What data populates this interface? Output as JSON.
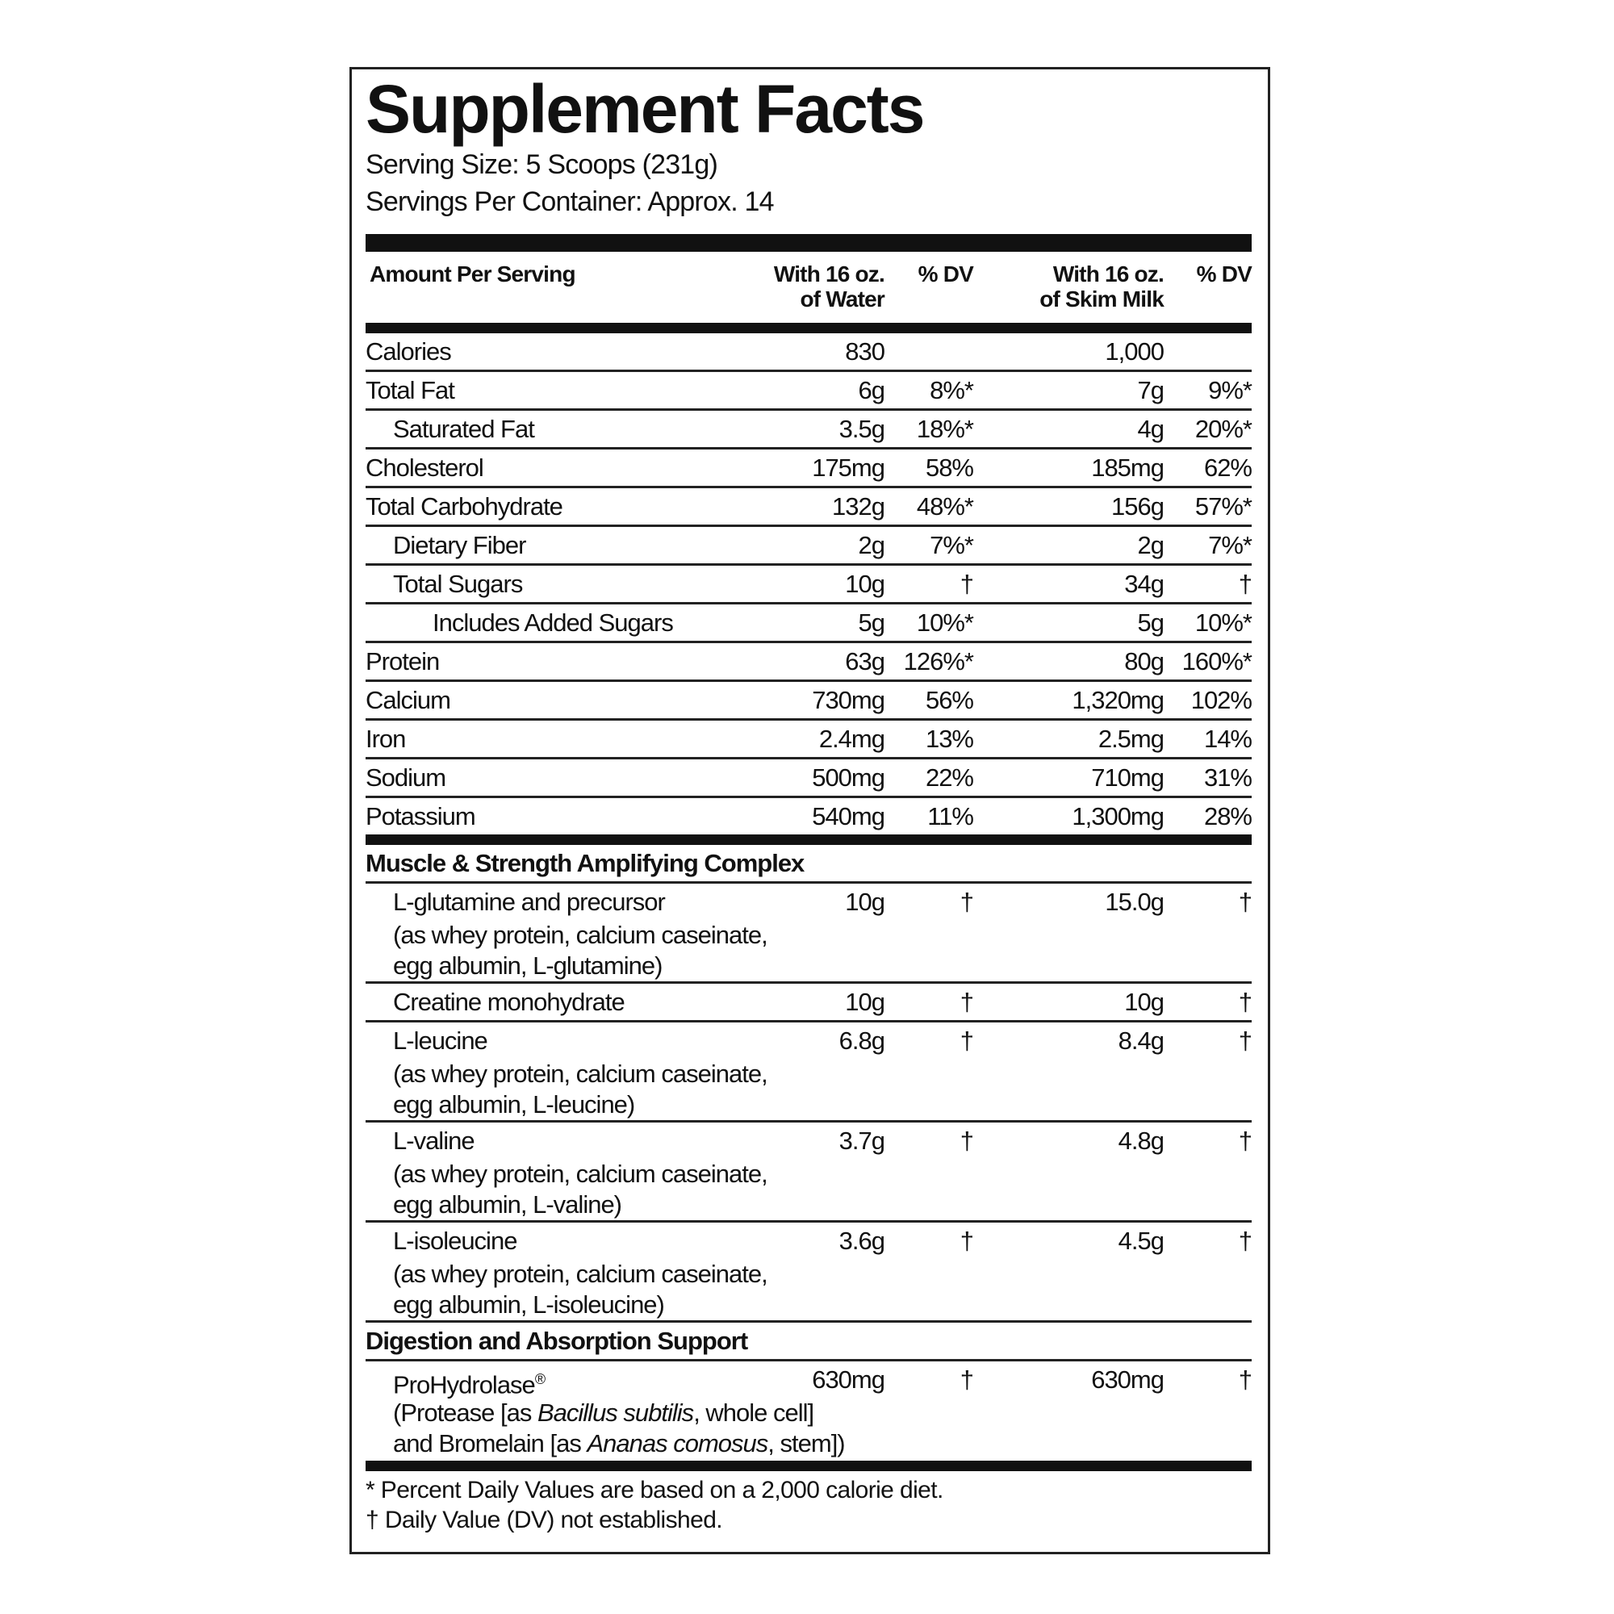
{
  "title": "Supplement Facts",
  "serving_size": "Serving Size: 5 Scoops (231g)",
  "servings_per_container": "Servings Per Container: Approx. 14",
  "header": {
    "amount": "Amount Per Serving",
    "water": [
      "With 16 oz.",
      "of Water"
    ],
    "water_dv": "% DV",
    "milk": [
      "With 16 oz.",
      "of Skim Milk"
    ],
    "milk_dv": "% DV"
  },
  "nutrients": [
    {
      "name": "Calories",
      "indent": 0,
      "water": "830",
      "milk": "1,000"
    },
    {
      "name": "Total Fat",
      "indent": 0,
      "water": "6g",
      "water_dv": "8%*",
      "milk": "7g",
      "milk_dv": "9%*"
    },
    {
      "name": "Saturated Fat",
      "indent": 1,
      "water": "3.5g",
      "water_dv": "18%*",
      "milk": "4g",
      "milk_dv": "20%*"
    },
    {
      "name": "Cholesterol",
      "indent": 0,
      "water": "175mg",
      "water_dv": "58%",
      "milk": "185mg",
      "milk_dv": "62%"
    },
    {
      "name": "Total Carbohydrate",
      "indent": 0,
      "water": "132g",
      "water_dv": "48%*",
      "milk": "156g",
      "milk_dv": "57%*"
    },
    {
      "name": "Dietary Fiber",
      "indent": 1,
      "water": "2g",
      "water_dv": "7%*",
      "milk": "2g",
      "milk_dv": "7%*"
    },
    {
      "name": "Total Sugars",
      "indent": 1,
      "water": "10g",
      "water_dv": "†",
      "milk": "34g",
      "milk_dv": "†"
    },
    {
      "name": "Includes Added Sugars",
      "indent": 2,
      "water": "5g",
      "water_dv": "10%*",
      "milk": "5g",
      "milk_dv": "10%*"
    },
    {
      "name": "Protein",
      "indent": 0,
      "water": "63g",
      "water_dv": "126%*",
      "milk": "80g",
      "milk_dv": "160%*"
    },
    {
      "name": "Calcium",
      "indent": 0,
      "water": "730mg",
      "water_dv": "56%",
      "milk": "1,320mg",
      "milk_dv": "102%"
    },
    {
      "name": "Iron",
      "indent": 0,
      "water": "2.4mg",
      "water_dv": "13%",
      "milk": "2.5mg",
      "milk_dv": "14%"
    },
    {
      "name": "Sodium",
      "indent": 0,
      "water": "500mg",
      "water_dv": "22%",
      "milk": "710mg",
      "milk_dv": "31%"
    },
    {
      "name": "Potassium",
      "indent": 0,
      "water": "540mg",
      "water_dv": "11%",
      "milk": "1,300mg",
      "milk_dv": "28%"
    }
  ],
  "sections": [
    {
      "title": "Muscle & Strength Amplifying Complex",
      "items": [
        {
          "name": "L-glutamine and precursor",
          "details": [
            "(as whey protein, calcium caseinate,",
            "egg albumin, L-glutamine)"
          ],
          "water": "10g",
          "water_dv": "†",
          "milk": "15.0g",
          "milk_dv": "†"
        },
        {
          "name": "Creatine monohydrate",
          "water": "10g",
          "water_dv": "†",
          "milk": "10g",
          "milk_dv": "†"
        },
        {
          "name": "L-leucine",
          "details": [
            "(as whey protein, calcium caseinate,",
            "egg albumin, L-leucine)"
          ],
          "water": "6.8g",
          "water_dv": "†",
          "milk": "8.4g",
          "milk_dv": "†"
        },
        {
          "name": "L-valine",
          "details": [
            "(as whey protein, calcium caseinate,",
            "egg albumin, L-valine)"
          ],
          "water": "3.7g",
          "water_dv": "†",
          "milk": "4.8g",
          "milk_dv": "†"
        },
        {
          "name": "L-isoleucine",
          "details": [
            "(as whey protein, calcium caseinate,",
            "egg albumin, L-isoleucine)"
          ],
          "water": "3.6g",
          "water_dv": "†",
          "milk": "4.5g",
          "milk_dv": "†"
        }
      ]
    },
    {
      "title": "Digestion and Absorption Support",
      "items": [
        {
          "name": "ProHydrolase",
          "mark": "®",
          "details": [
            [
              {
                "text": "(Protease [as "
              },
              {
                "text": "Bacillus subtilis",
                "italic": true
              },
              {
                "text": ", whole cell]"
              }
            ],
            [
              {
                "text": "and Bromelain [as "
              },
              {
                "text": "Ananas comosus",
                "italic": true
              },
              {
                "text": ", stem])"
              }
            ]
          ],
          "water": "630mg",
          "water_dv": "†",
          "milk": "630mg",
          "milk_dv": "†"
        }
      ]
    }
  ],
  "footnotes": [
    "* Percent Daily Values are based on a 2,000 calorie diet.",
    "† Daily Value (DV) not established."
  ]
}
